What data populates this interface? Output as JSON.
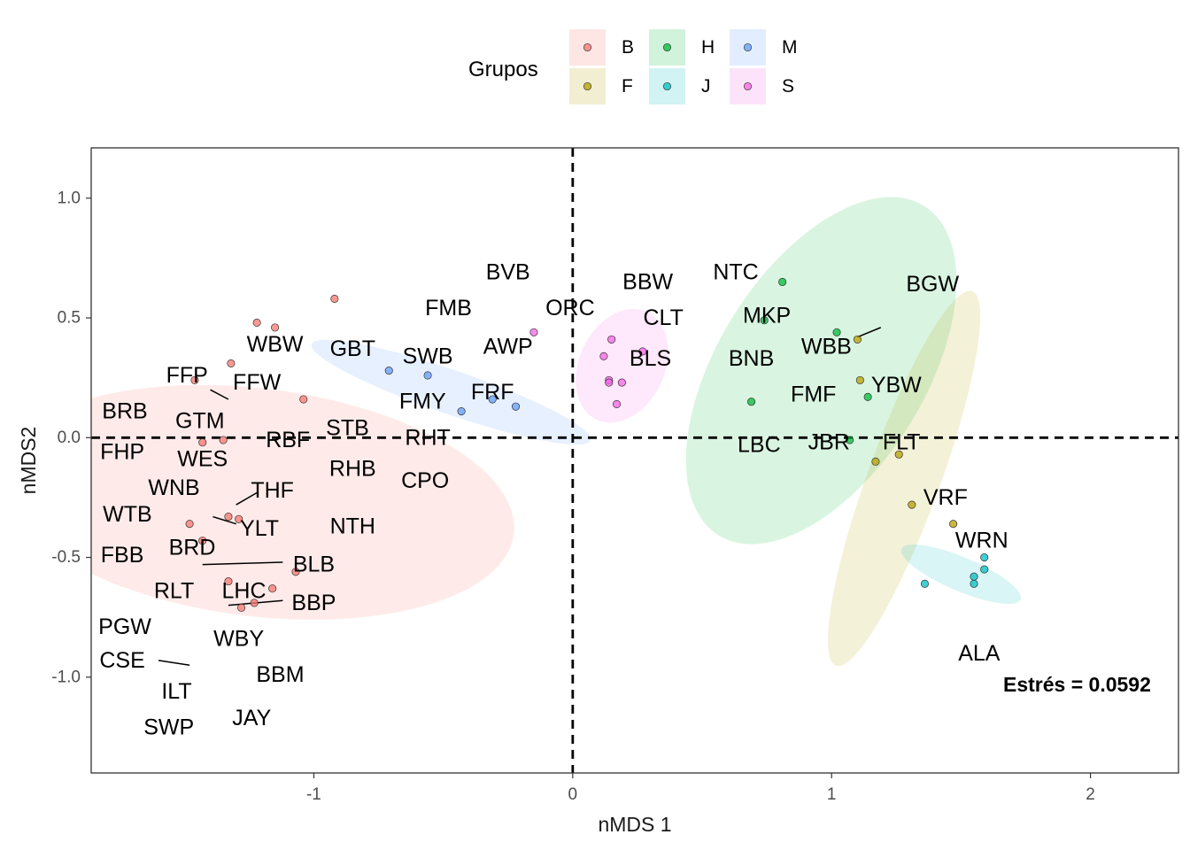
{
  "chart_data": {
    "type": "scatter",
    "xlabel": "nMDS 1",
    "ylabel": "nMDS2",
    "xlim": [
      -1.86,
      2.34
    ],
    "ylim": [
      -1.4,
      1.21
    ],
    "x_ticks": [
      -1,
      0,
      1,
      2
    ],
    "y_ticks": [
      1.0,
      0.5,
      0.0,
      -0.5,
      -1.0
    ],
    "x_tick_labels": [
      "-1",
      "0",
      "1",
      "2"
    ],
    "y_tick_labels": [
      "1.0",
      "0.5",
      "0.0",
      "-0.5",
      "-1.0"
    ],
    "reference_lines": [
      {
        "axis": "x",
        "value": 0,
        "style": "dashed"
      },
      {
        "axis": "y",
        "value": 0,
        "style": "dashed"
      }
    ],
    "grid": false,
    "legend": {
      "title": "Grupos",
      "placement": "top",
      "entries": [
        "B",
        "H",
        "M",
        "F",
        "J",
        "S"
      ]
    },
    "annotation": "Estrés = 0.0592",
    "groups": [
      {
        "name": "B",
        "color": "#F8766D"
      },
      {
        "name": "F",
        "color": "#B79F00"
      },
      {
        "name": "H",
        "color": "#00BA38"
      },
      {
        "name": "J",
        "color": "#00BFC4"
      },
      {
        "name": "M",
        "color": "#619CFF"
      },
      {
        "name": "S",
        "color": "#F564E3"
      }
    ],
    "ellipses": [
      {
        "group": "B",
        "cx": -1.22,
        "cy": -0.27,
        "rx": 0.44,
        "ry": 1.0,
        "angle": -83
      },
      {
        "group": "M",
        "cx": -0.47,
        "cy": 0.19,
        "rx": 0.57,
        "ry": 0.085,
        "angle": 19
      },
      {
        "group": "S",
        "cx": 0.19,
        "cy": 0.3,
        "rx": 0.23,
        "ry": 0.165,
        "angle": -65
      },
      {
        "group": "H",
        "cx": 0.96,
        "cy": 0.28,
        "rx": 0.75,
        "ry": 0.4,
        "angle": -58
      },
      {
        "group": "F",
        "cx": 1.28,
        "cy": -0.17,
        "rx": 0.77,
        "ry": 0.14,
        "angle": -70
      },
      {
        "group": "J",
        "cx": 1.5,
        "cy": -0.57,
        "rx": 0.25,
        "ry": 0.065,
        "angle": 23
      }
    ],
    "points": [
      {
        "group": "B",
        "x": -0.92,
        "y": 0.58
      },
      {
        "group": "B",
        "x": -1.22,
        "y": 0.48
      },
      {
        "group": "B",
        "x": -1.15,
        "y": 0.46
      },
      {
        "group": "B",
        "x": -1.32,
        "y": 0.31
      },
      {
        "group": "B",
        "x": -1.04,
        "y": 0.16
      },
      {
        "group": "B",
        "x": -1.46,
        "y": 0.24
      },
      {
        "group": "B",
        "x": -1.43,
        "y": -0.02
      },
      {
        "group": "B",
        "x": -1.35,
        "y": -0.01
      },
      {
        "group": "B",
        "x": -1.33,
        "y": -0.33
      },
      {
        "group": "B",
        "x": -1.29,
        "y": -0.34
      },
      {
        "group": "B",
        "x": -1.48,
        "y": -0.36
      },
      {
        "group": "B",
        "x": -1.43,
        "y": -0.43
      },
      {
        "group": "B",
        "x": -1.07,
        "y": -0.56
      },
      {
        "group": "B",
        "x": -1.33,
        "y": -0.6
      },
      {
        "group": "B",
        "x": -1.16,
        "y": -0.63
      },
      {
        "group": "B",
        "x": -1.23,
        "y": -0.69
      },
      {
        "group": "B",
        "x": -1.28,
        "y": -0.71
      },
      {
        "group": "M",
        "x": -0.71,
        "y": 0.28
      },
      {
        "group": "M",
        "x": -0.56,
        "y": 0.26
      },
      {
        "group": "M",
        "x": -0.43,
        "y": 0.11
      },
      {
        "group": "M",
        "x": -0.31,
        "y": 0.16
      },
      {
        "group": "M",
        "x": -0.22,
        "y": 0.13
      },
      {
        "group": "S",
        "x": -0.15,
        "y": 0.44
      },
      {
        "group": "S",
        "x": 0.15,
        "y": 0.41
      },
      {
        "group": "S",
        "x": 0.12,
        "y": 0.34
      },
      {
        "group": "S",
        "x": 0.27,
        "y": 0.36
      },
      {
        "group": "S",
        "x": 0.14,
        "y": 0.24
      },
      {
        "group": "S",
        "x": 0.14,
        "y": 0.23
      },
      {
        "group": "S",
        "x": 0.19,
        "y": 0.23
      },
      {
        "group": "S",
        "x": 0.17,
        "y": 0.14
      },
      {
        "group": "H",
        "x": 0.81,
        "y": 0.65
      },
      {
        "group": "H",
        "x": 0.74,
        "y": 0.49
      },
      {
        "group": "H",
        "x": 1.02,
        "y": 0.44
      },
      {
        "group": "H",
        "x": 0.69,
        "y": 0.15
      },
      {
        "group": "H",
        "x": 1.14,
        "y": 0.17
      },
      {
        "group": "H",
        "x": 1.07,
        "y": -0.01
      },
      {
        "group": "F",
        "x": 1.1,
        "y": 0.41
      },
      {
        "group": "F",
        "x": 1.11,
        "y": 0.24
      },
      {
        "group": "F",
        "x": 1.26,
        "y": -0.07
      },
      {
        "group": "F",
        "x": 1.17,
        "y": -0.1
      },
      {
        "group": "F",
        "x": 1.31,
        "y": -0.28
      },
      {
        "group": "F",
        "x": 1.47,
        "y": -0.36
      },
      {
        "group": "J",
        "x": 1.59,
        "y": -0.5
      },
      {
        "group": "J",
        "x": 1.59,
        "y": -0.55
      },
      {
        "group": "J",
        "x": 1.55,
        "y": -0.58
      },
      {
        "group": "J",
        "x": 1.55,
        "y": -0.61
      },
      {
        "group": "J",
        "x": 1.36,
        "y": -0.61
      }
    ],
    "point_labels": [
      {
        "text": "BVB",
        "x": -0.25,
        "y": 0.69
      },
      {
        "text": "FMB",
        "x": -0.48,
        "y": 0.54
      },
      {
        "text": "ORC",
        "x": -0.01,
        "y": 0.54
      },
      {
        "text": "AWP",
        "x": -0.25,
        "y": 0.38
      },
      {
        "text": "WBW",
        "x": -1.15,
        "y": 0.39
      },
      {
        "text": "GBT",
        "x": -0.85,
        "y": 0.37
      },
      {
        "text": "SWB",
        "x": -0.56,
        "y": 0.34
      },
      {
        "text": "FFP",
        "x": -1.49,
        "y": 0.26
      },
      {
        "text": "FFW",
        "x": -1.22,
        "y": 0.23
      },
      {
        "text": "FRF",
        "x": -0.31,
        "y": 0.19
      },
      {
        "text": "FMY",
        "x": -0.58,
        "y": 0.15
      },
      {
        "text": "BRB",
        "x": -1.73,
        "y": 0.11
      },
      {
        "text": "GTM",
        "x": -1.44,
        "y": 0.07
      },
      {
        "text": "STB",
        "x": -0.87,
        "y": 0.04
      },
      {
        "text": "RBF",
        "x": -1.1,
        "y": -0.01
      },
      {
        "text": "RHT",
        "x": -0.56,
        "y": -0.0
      },
      {
        "text": "FHP",
        "x": -1.74,
        "y": -0.06
      },
      {
        "text": "WES",
        "x": -1.43,
        "y": -0.09
      },
      {
        "text": "RHB",
        "x": -0.85,
        "y": -0.13
      },
      {
        "text": "CPO",
        "x": -0.57,
        "y": -0.18
      },
      {
        "text": "WNB",
        "x": -1.54,
        "y": -0.21
      },
      {
        "text": "THF",
        "x": -1.16,
        "y": -0.22
      },
      {
        "text": "WTB",
        "x": -1.72,
        "y": -0.32
      },
      {
        "text": "YLT",
        "x": -1.21,
        "y": -0.38
      },
      {
        "text": "NTH",
        "x": -0.85,
        "y": -0.37
      },
      {
        "text": "BRD",
        "x": -1.47,
        "y": -0.46
      },
      {
        "text": "FBB",
        "x": -1.74,
        "y": -0.49
      },
      {
        "text": "BLB",
        "x": -1.0,
        "y": -0.53
      },
      {
        "text": "RLT",
        "x": -1.54,
        "y": -0.64
      },
      {
        "text": "LHC",
        "x": -1.27,
        "y": -0.64
      },
      {
        "text": "BBP",
        "x": -1.0,
        "y": -0.69
      },
      {
        "text": "PGW",
        "x": -1.73,
        "y": -0.79
      },
      {
        "text": "WBY",
        "x": -1.29,
        "y": -0.84
      },
      {
        "text": "CSE",
        "x": -1.74,
        "y": -0.93
      },
      {
        "text": "BBM",
        "x": -1.13,
        "y": -0.99
      },
      {
        "text": "ILT",
        "x": -1.53,
        "y": -1.06
      },
      {
        "text": "JAY",
        "x": -1.24,
        "y": -1.17
      },
      {
        "text": "SWP",
        "x": -1.56,
        "y": -1.21
      },
      {
        "text": "BBW",
        "x": 0.29,
        "y": 0.65
      },
      {
        "text": "NTC",
        "x": 0.63,
        "y": 0.69
      },
      {
        "text": "CLT",
        "x": 0.35,
        "y": 0.5
      },
      {
        "text": "BGW",
        "x": 1.39,
        "y": 0.64
      },
      {
        "text": "MKP",
        "x": 0.75,
        "y": 0.51
      },
      {
        "text": "BLS",
        "x": 0.3,
        "y": 0.33
      },
      {
        "text": "WBB",
        "x": 0.98,
        "y": 0.38
      },
      {
        "text": "BNB",
        "x": 0.69,
        "y": 0.33
      },
      {
        "text": "YBW",
        "x": 1.25,
        "y": 0.22
      },
      {
        "text": "FMF",
        "x": 0.93,
        "y": 0.18
      },
      {
        "text": "LBC",
        "x": 0.72,
        "y": -0.03
      },
      {
        "text": "JBR",
        "x": 0.99,
        "y": -0.02
      },
      {
        "text": "FLT",
        "x": 1.27,
        "y": -0.02
      },
      {
        "text": "VRF",
        "x": 1.44,
        "y": -0.25
      },
      {
        "text": "WRN",
        "x": 1.58,
        "y": -0.43
      },
      {
        "text": "ALA",
        "x": 1.57,
        "y": -0.9
      }
    ],
    "connector_lines": [
      {
        "x1": -1.4,
        "y1": 0.2,
        "x2": -1.33,
        "y2": 0.16
      },
      {
        "x1": -1.3,
        "y1": -0.28,
        "x2": -1.22,
        "y2": -0.23
      },
      {
        "x1": -1.39,
        "y1": -0.33,
        "x2": -1.3,
        "y2": -0.36
      },
      {
        "x1": -1.43,
        "y1": -0.53,
        "x2": -1.12,
        "y2": -0.52
      },
      {
        "x1": -1.33,
        "y1": -0.7,
        "x2": -1.12,
        "y2": -0.68
      },
      {
        "x1": -1.6,
        "y1": -0.93,
        "x2": -1.48,
        "y2": -0.95
      },
      {
        "x1": 1.1,
        "y1": 0.42,
        "x2": 1.19,
        "y2": 0.46
      }
    ]
  }
}
